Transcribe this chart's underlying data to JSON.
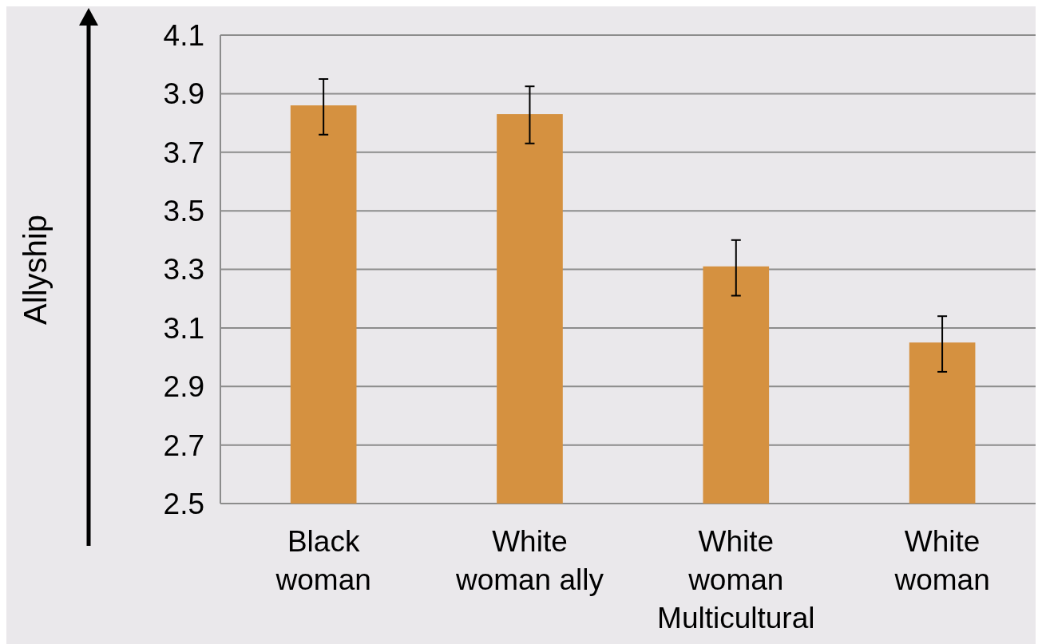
{
  "chart_data": {
    "type": "bar",
    "ylabel": "Allyship",
    "categories": [
      "Black woman",
      "White woman ally",
      "White woman Multicultural",
      "White woman"
    ],
    "values": [
      3.86,
      3.83,
      3.31,
      3.05
    ],
    "errors": [
      [
        3.76,
        3.95
      ],
      [
        3.73,
        3.925
      ],
      [
        3.21,
        3.4
      ],
      [
        2.95,
        3.14
      ]
    ],
    "color": "#d59140",
    "ylim": [
      2.5,
      4.1
    ],
    "yticks": [
      2.5,
      2.7,
      2.9,
      3.1,
      3.3,
      3.5,
      3.7,
      3.9,
      4.1
    ],
    "grid": "y"
  }
}
